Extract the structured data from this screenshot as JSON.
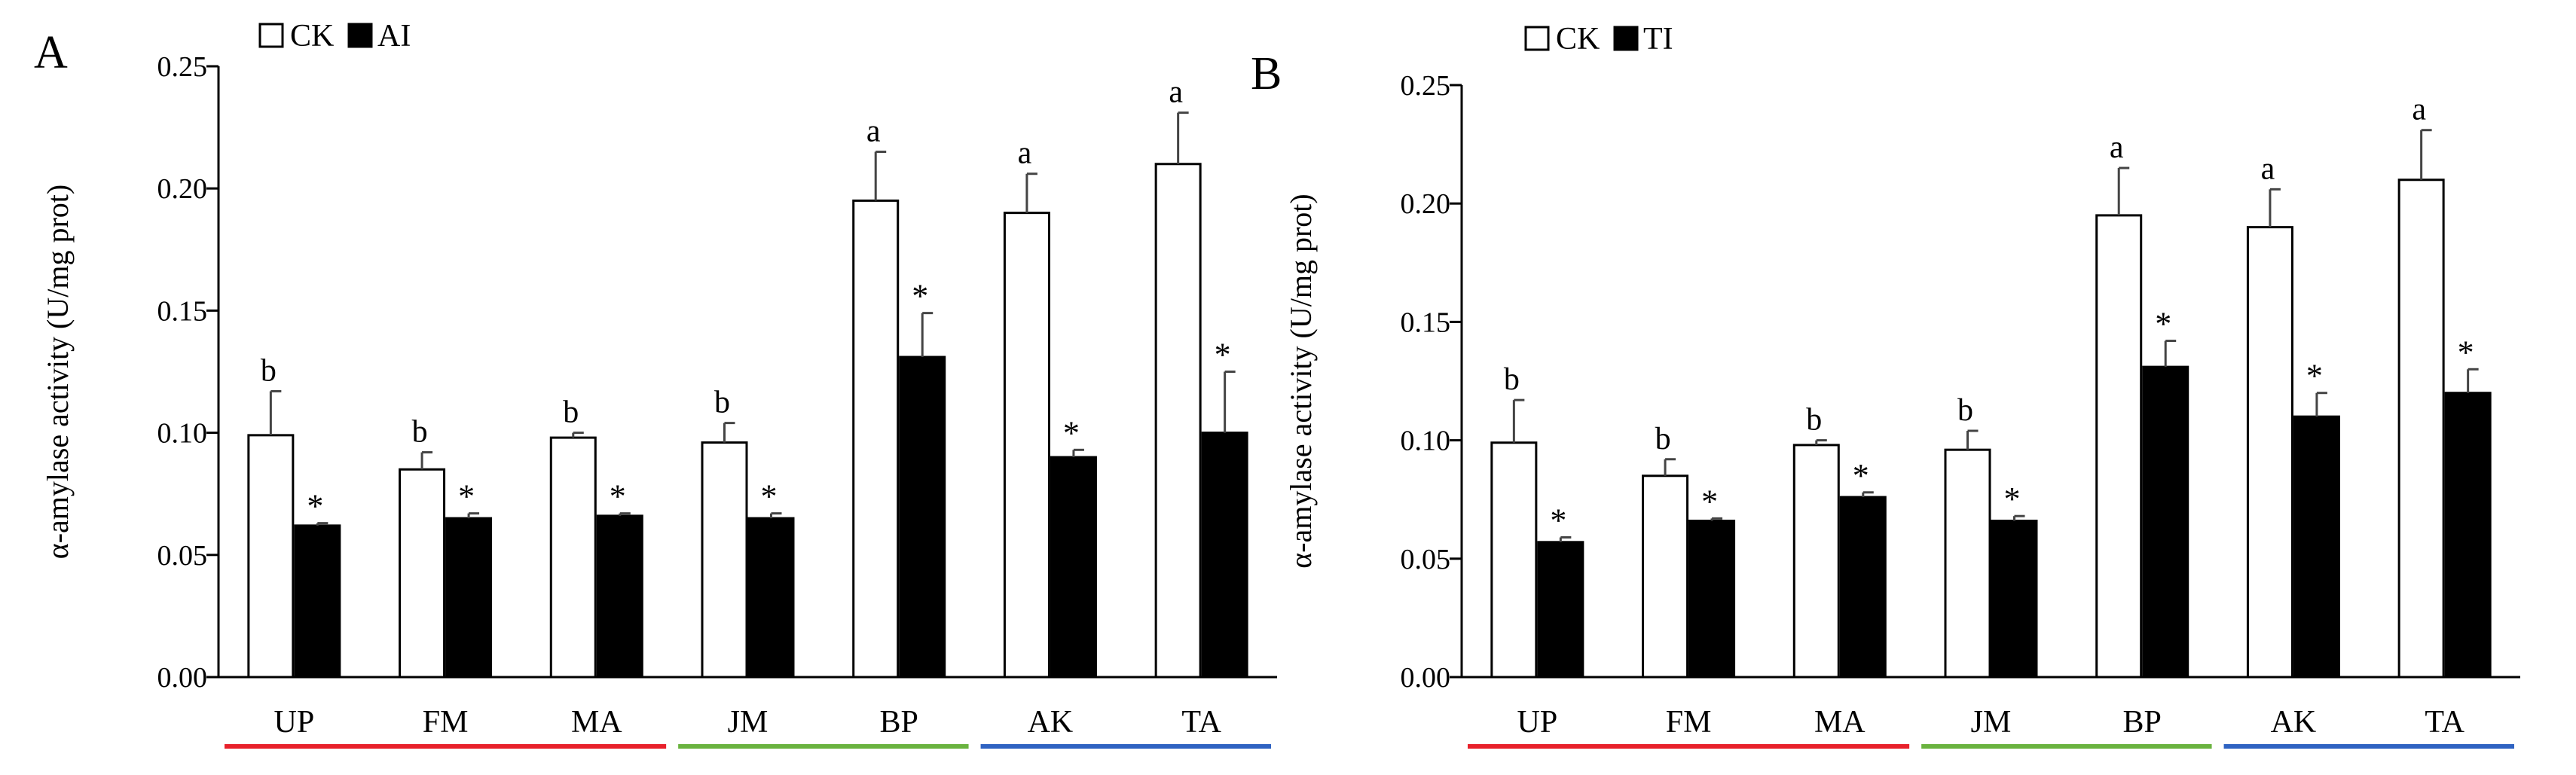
{
  "colors": {
    "ck": "#ffffff",
    "treatment": "#000000",
    "red": "#e8212b",
    "green": "#6ab33f",
    "blue": "#2f63c2",
    "error_bar": "#444444"
  },
  "chart_data": [
    {
      "type": "bar",
      "panel_label": "A",
      "ylabel": "α-amylase activity (U/mg prot)",
      "ylim": [
        0,
        0.25
      ],
      "yticks": [
        "0.00",
        "0.05",
        "0.10",
        "0.15",
        "0.20",
        "0.25"
      ],
      "categories": [
        "UP",
        "FM",
        "MA",
        "JM",
        "BP",
        "AK",
        "TA"
      ],
      "legend": [
        "CK",
        "AI"
      ],
      "legend_position": "top-left",
      "series": [
        {
          "name": "CK",
          "values": [
            0.099,
            0.085,
            0.098,
            0.096,
            0.195,
            0.19,
            0.21
          ],
          "errors": [
            0.018,
            0.007,
            0.002,
            0.008,
            0.02,
            0.016,
            0.021
          ],
          "labels": [
            "b",
            "b",
            "b",
            "b",
            "a",
            "a",
            "a"
          ]
        },
        {
          "name": "AI",
          "values": [
            0.062,
            0.065,
            0.066,
            0.065,
            0.131,
            0.09,
            0.1
          ],
          "errors": [
            0.001,
            0.002,
            0.001,
            0.002,
            0.018,
            0.003,
            0.025
          ],
          "labels": [
            "*",
            "*",
            "*",
            "*",
            "*",
            "*",
            "*"
          ]
        }
      ],
      "category_groups": [
        {
          "categories": [
            "UP",
            "FM",
            "MA"
          ],
          "color": "red"
        },
        {
          "categories": [
            "JM",
            "BP"
          ],
          "color": "green"
        },
        {
          "categories": [
            "AK",
            "TA"
          ],
          "color": "blue"
        }
      ]
    },
    {
      "type": "bar",
      "panel_label": "B",
      "ylabel": "α-amylase activity (U/mg prot)",
      "ylim": [
        0,
        0.25
      ],
      "yticks": [
        "0.00",
        "0.05",
        "0.10",
        "0.15",
        "0.20",
        "0.25"
      ],
      "categories": [
        "UP",
        "FM",
        "MA",
        "JM",
        "BP",
        "AK",
        "TA"
      ],
      "legend": [
        "CK",
        "TI"
      ],
      "legend_position": "top-left",
      "series": [
        {
          "name": "CK",
          "values": [
            0.099,
            0.085,
            0.098,
            0.096,
            0.195,
            0.19,
            0.21
          ],
          "errors": [
            0.018,
            0.007,
            0.002,
            0.008,
            0.02,
            0.016,
            0.021
          ],
          "labels": [
            "b",
            "b",
            "b",
            "b",
            "a",
            "a",
            "a"
          ]
        },
        {
          "name": "TI",
          "values": [
            0.057,
            0.066,
            0.076,
            0.066,
            0.131,
            0.11,
            0.12
          ],
          "errors": [
            0.002,
            0.001,
            0.002,
            0.002,
            0.011,
            0.01,
            0.01
          ],
          "labels": [
            "*",
            "*",
            "*",
            "*",
            "*",
            "*",
            "*"
          ]
        }
      ],
      "category_groups": [
        {
          "categories": [
            "UP",
            "FM",
            "MA"
          ],
          "color": "red"
        },
        {
          "categories": [
            "JM",
            "BP"
          ],
          "color": "green"
        },
        {
          "categories": [
            "AK",
            "TA"
          ],
          "color": "blue"
        }
      ]
    }
  ]
}
